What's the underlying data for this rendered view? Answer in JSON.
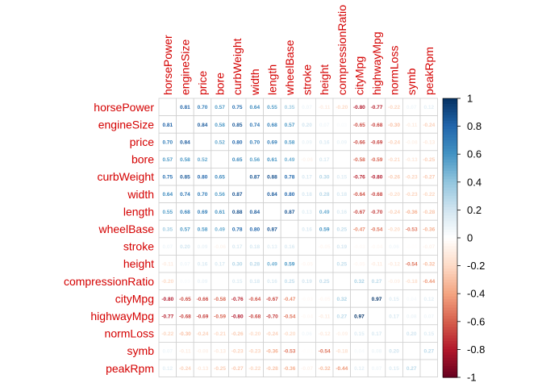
{
  "chart_data": {
    "type": "heatmap",
    "variables": [
      "horsePower",
      "engineSize",
      "price",
      "bore",
      "curbWeight",
      "width",
      "length",
      "wheelBase",
      "stroke",
      "height",
      "compressionRatio",
      "cityMpg",
      "highwayMpg",
      "normLoss",
      "symb",
      "peakRpm"
    ],
    "matrix": [
      [
        null,
        0.81,
        0.7,
        0.57,
        0.75,
        0.64,
        0.55,
        0.35,
        0.07,
        -0.11,
        -0.2,
        -0.8,
        -0.77,
        -0.22,
        0.07,
        0.12
      ],
      [
        0.81,
        null,
        0.84,
        0.58,
        0.85,
        0.74,
        0.68,
        0.57,
        0.2,
        0.07,
        0.03,
        -0.65,
        -0.68,
        -0.3,
        -0.11,
        -0.24
      ],
      [
        0.7,
        0.84,
        null,
        0.52,
        0.8,
        0.7,
        0.69,
        0.58,
        0.09,
        0.16,
        0.09,
        -0.66,
        -0.69,
        -0.24,
        -0.08,
        -0.13
      ],
      [
        0.57,
        0.58,
        0.52,
        null,
        0.65,
        0.56,
        0.61,
        0.49,
        -0.06,
        0.17,
        0.0,
        -0.58,
        -0.59,
        -0.21,
        -0.13,
        -0.25
      ],
      [
        0.75,
        0.85,
        0.8,
        0.65,
        null,
        0.87,
        0.88,
        0.78,
        0.17,
        0.3,
        0.15,
        -0.76,
        -0.8,
        -0.26,
        -0.23,
        -0.27
      ],
      [
        0.64,
        0.74,
        0.7,
        0.56,
        0.87,
        null,
        0.84,
        0.8,
        0.18,
        0.28,
        0.18,
        -0.64,
        -0.68,
        -0.2,
        -0.23,
        -0.22
      ],
      [
        0.55,
        0.68,
        0.69,
        0.61,
        0.88,
        0.84,
        null,
        0.87,
        0.13,
        0.49,
        0.16,
        -0.67,
        -0.7,
        -0.24,
        -0.36,
        -0.28
      ],
      [
        0.35,
        0.57,
        0.58,
        0.49,
        0.78,
        0.8,
        0.87,
        null,
        0.16,
        0.59,
        0.25,
        -0.47,
        -0.54,
        -0.2,
        -0.53,
        -0.36
      ],
      [
        0.07,
        0.2,
        0.09,
        -0.06,
        0.17,
        0.18,
        0.13,
        0.16,
        null,
        -0.05,
        0.19,
        -0.03,
        -0.04,
        0.06,
        -0.01,
        -0.07
      ],
      [
        -0.11,
        0.07,
        0.16,
        0.17,
        0.3,
        0.28,
        0.49,
        0.59,
        -0.05,
        null,
        0.25,
        -0.05,
        -0.11,
        -0.12,
        -0.54,
        -0.32
      ],
      [
        -0.2,
        0.03,
        0.09,
        0.0,
        0.15,
        0.18,
        0.16,
        0.25,
        0.19,
        0.25,
        null,
        0.32,
        0.27,
        -0.09,
        -0.18,
        -0.44
      ],
      [
        -0.8,
        -0.65,
        -0.66,
        -0.58,
        -0.76,
        -0.64,
        -0.67,
        -0.47,
        -0.03,
        -0.05,
        0.32,
        null,
        0.97,
        0.15,
        0.04,
        0.12
      ],
      [
        -0.77,
        -0.68,
        -0.69,
        -0.59,
        -0.8,
        -0.68,
        -0.7,
        -0.54,
        -0.04,
        -0.11,
        0.27,
        0.97,
        null,
        0.17,
        0.08,
        0.07
      ],
      [
        -0.22,
        -0.3,
        -0.24,
        -0.21,
        -0.26,
        -0.2,
        -0.24,
        -0.2,
        0.06,
        -0.12,
        -0.09,
        0.15,
        0.17,
        null,
        0.2,
        0.15
      ],
      [
        0.07,
        -0.11,
        -0.08,
        -0.13,
        -0.23,
        -0.23,
        -0.36,
        -0.53,
        -0.01,
        -0.54,
        -0.18,
        0.04,
        0.08,
        0.2,
        null,
        0.27
      ],
      [
        0.12,
        -0.24,
        -0.13,
        -0.25,
        -0.27,
        -0.22,
        -0.28,
        -0.36,
        -0.07,
        -0.32,
        -0.44,
        0.12,
        0.07,
        0.15,
        0.27,
        null
      ]
    ],
    "colorbar": {
      "range": [
        -1,
        1
      ],
      "ticks": [
        "1",
        "0.8",
        "0.6",
        "0.4",
        "0.2",
        "0",
        "-0.2",
        "-0.4",
        "-0.6",
        "-0.8",
        "-1"
      ]
    },
    "colors": {
      "positive": "#053061",
      "negative": "#67001f",
      "neutral": "#ffffff",
      "label": "#d40000",
      "grid": "#cfcfcf"
    }
  }
}
